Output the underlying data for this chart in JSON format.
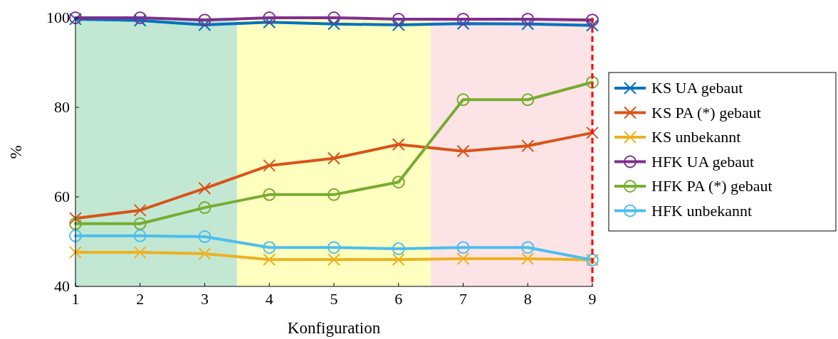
{
  "chart_data": {
    "type": "line",
    "xlabel": "Konfiguration",
    "ylabel": "%",
    "x": [
      1,
      2,
      3,
      4,
      5,
      6,
      7,
      8,
      9
    ],
    "xlim": [
      1,
      9
    ],
    "xticks": [
      1,
      2,
      3,
      4,
      5,
      6,
      7,
      8,
      9
    ],
    "ylim": [
      40,
      100
    ],
    "yticks": [
      40,
      60,
      80,
      100
    ],
    "legend": "right",
    "line_style": "solid",
    "bands": [
      {
        "axis": "x",
        "from": 1,
        "to": 3.5,
        "color": "#c2e8d3"
      },
      {
        "axis": "x",
        "from": 3.5,
        "to": 6.5,
        "color": "#ffffc0"
      },
      {
        "axis": "x",
        "from": 6.5,
        "to": 9,
        "color": "#fce4e6"
      }
    ],
    "ref_lines": [
      {
        "axis": "x",
        "value": 9,
        "color": "#ff0000",
        "line_style": "dashed"
      }
    ],
    "series": [
      {
        "name": "KS UA gebaut",
        "color": "#0072bd",
        "marker": "cross",
        "values": [
          99.7,
          99.4,
          98.4,
          99.0,
          98.6,
          98.4,
          98.7,
          98.6,
          98.3
        ]
      },
      {
        "name": "KS PA (*) gebaut",
        "color": "#d95319",
        "marker": "cross",
        "values": [
          55.2,
          57.0,
          61.9,
          67.0,
          68.6,
          71.7,
          70.2,
          71.4,
          74.3
        ]
      },
      {
        "name": "KS unbekannt",
        "color": "#edb120",
        "marker": "cross",
        "values": [
          47.6,
          47.6,
          47.3,
          46.0,
          46.0,
          46.0,
          46.2,
          46.2,
          45.9
        ]
      },
      {
        "name": "HFK UA gebaut",
        "color": "#7e2f8e",
        "marker": "circle",
        "values": [
          100,
          100,
          99.5,
          100,
          100,
          99.7,
          99.7,
          99.7,
          99.5
        ]
      },
      {
        "name": "HFK PA (*) gebaut",
        "color": "#77ac30",
        "marker": "circle",
        "values": [
          54.0,
          54.0,
          57.6,
          60.5,
          60.5,
          63.3,
          81.7,
          81.7,
          85.6
        ]
      },
      {
        "name": "HFK unbekannt",
        "color": "#4dbeee",
        "marker": "circle",
        "values": [
          51.3,
          51.3,
          51.1,
          48.7,
          48.7,
          48.4,
          48.7,
          48.7,
          45.9
        ]
      }
    ]
  }
}
